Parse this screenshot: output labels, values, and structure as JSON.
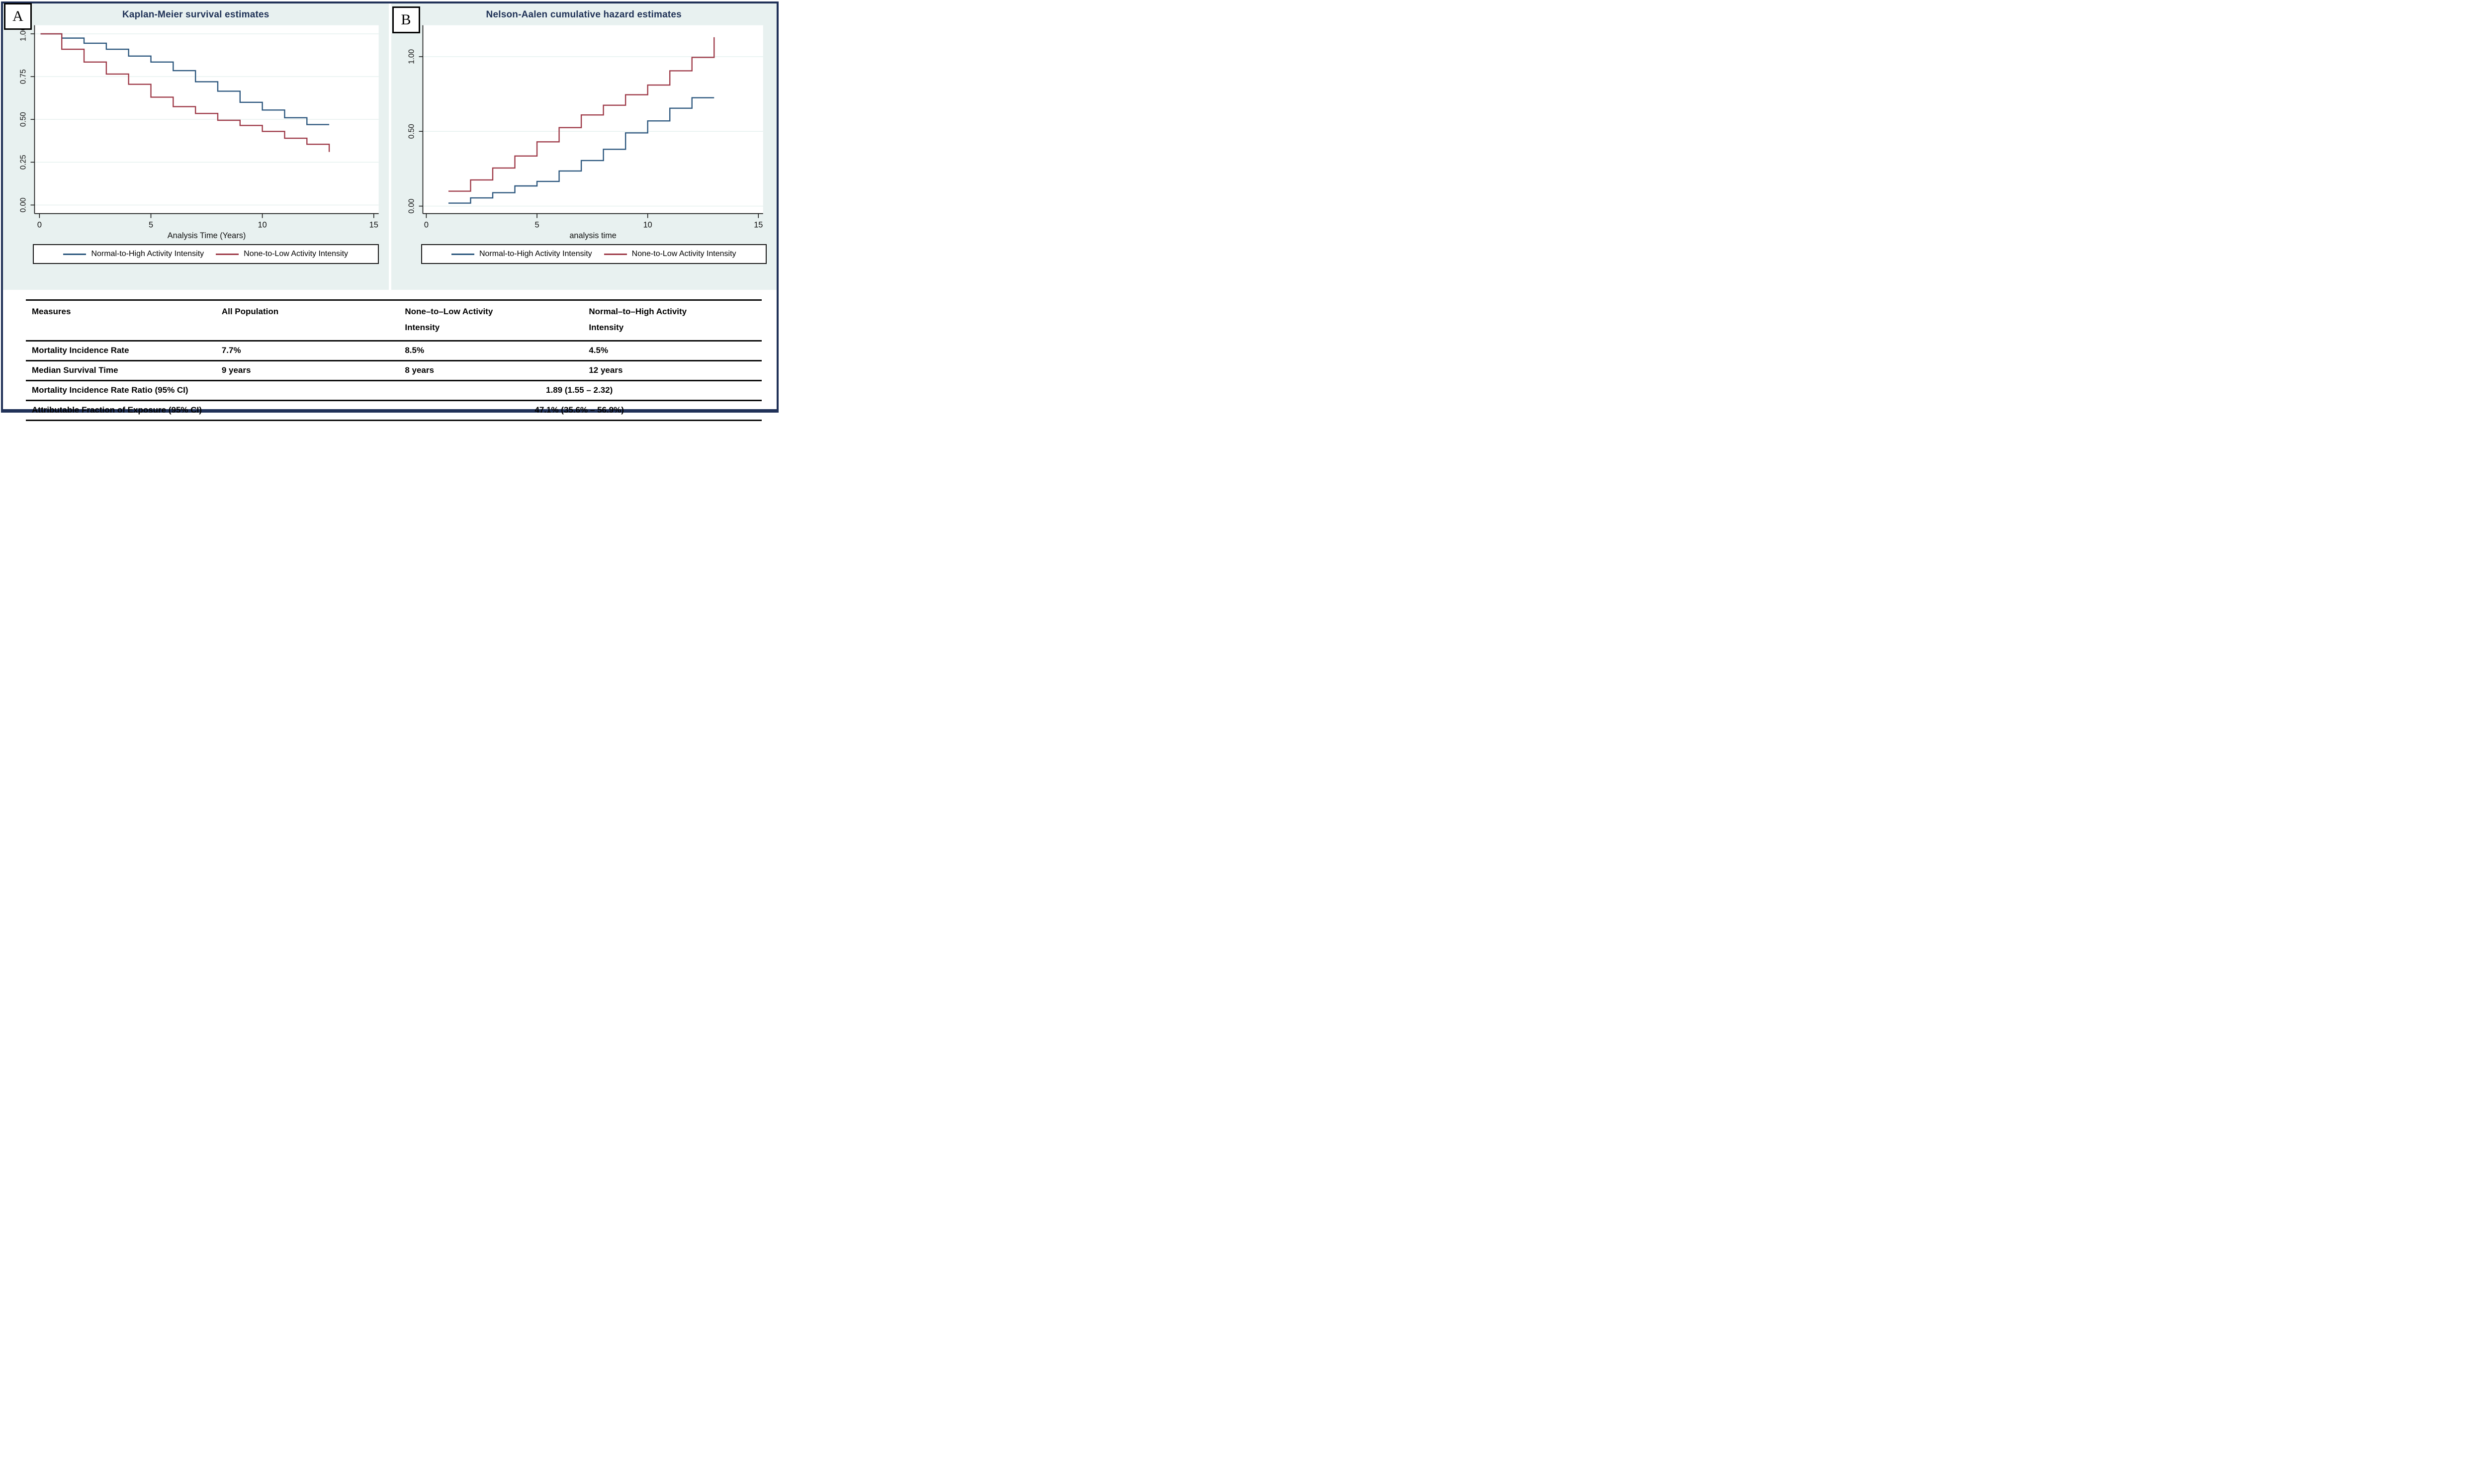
{
  "panel_labels": {
    "a": "A",
    "b": "B"
  },
  "colors": {
    "outer_border_navy": "#203158",
    "panel_background": "#e8f1f0",
    "plot_background": "#ffffff",
    "gridline": "#e4efee",
    "title_navy": "#1e3156",
    "line_blue": "#2b567d",
    "line_red": "#9e3a48"
  },
  "legend": {
    "entries": [
      {
        "label": "Normal-to-High Activity Intensity",
        "color": "#2b567d"
      },
      {
        "label": "None-to-Low Activity Intensity",
        "color": "#9e3a48"
      }
    ]
  },
  "chart_data": [
    {
      "type": "line",
      "subtype": "step",
      "panel": "A",
      "title": "Kaplan-Meier survival estimates",
      "xlabel": "Analysis Time (Years)",
      "ylabel": "",
      "xlim": [
        0,
        15.3
      ],
      "ylim": [
        -0.05,
        1.05
      ],
      "grid": true,
      "legend_position": "bottom",
      "x_ticks": [
        {
          "v": 0,
          "label": "0"
        },
        {
          "v": 5,
          "label": "5"
        },
        {
          "v": 10,
          "label": "10"
        },
        {
          "v": 15,
          "label": "15"
        }
      ],
      "y_ticks": [
        {
          "v": 0,
          "label": "0.00"
        },
        {
          "v": 0.25,
          "label": "0.25"
        },
        {
          "v": 0.5,
          "label": "0.50"
        },
        {
          "v": 0.75,
          "label": "0.75"
        },
        {
          "v": 1,
          "label": "1.00"
        }
      ],
      "series": [
        {
          "name": "Normal-to-High Activity Intensity",
          "color": "#2b567d",
          "steps": [
            [
              0.05,
              1.0
            ],
            [
              1,
              0.975
            ],
            [
              2,
              0.945
            ],
            [
              3,
              0.91
            ],
            [
              4,
              0.87
            ],
            [
              5,
              0.835
            ],
            [
              6,
              0.785
            ],
            [
              7,
              0.72
            ],
            [
              8,
              0.665
            ],
            [
              9,
              0.6
            ],
            [
              10,
              0.555
            ],
            [
              11,
              0.51
            ],
            [
              12,
              0.47
            ]
          ],
          "end_x": 13,
          "final_y": null
        },
        {
          "name": "None-to-Low Activity Intensity",
          "color": "#9e3a48",
          "steps": [
            [
              0.05,
              1.0
            ],
            [
              1,
              0.91
            ],
            [
              2,
              0.835
            ],
            [
              3,
              0.765
            ],
            [
              4,
              0.705
            ],
            [
              5,
              0.63
            ],
            [
              6,
              0.575
            ],
            [
              7,
              0.535
            ],
            [
              8,
              0.495
            ],
            [
              9,
              0.465
            ],
            [
              10,
              0.43
            ],
            [
              11,
              0.39
            ],
            [
              12,
              0.355
            ]
          ],
          "end_x": 13,
          "final_y": 0.31
        }
      ]
    },
    {
      "type": "line",
      "subtype": "step",
      "panel": "B",
      "title": "Nelson-Aalen cumulative hazard estimates",
      "xlabel": "analysis time",
      "ylabel": "",
      "xlim": [
        0,
        15.3
      ],
      "ylim": [
        -0.05,
        1.21
      ],
      "grid": true,
      "legend_position": "bottom",
      "x_ticks": [
        {
          "v": 0,
          "label": "0"
        },
        {
          "v": 5,
          "label": "5"
        },
        {
          "v": 10,
          "label": "10"
        },
        {
          "v": 15,
          "label": "15"
        }
      ],
      "y_ticks": [
        {
          "v": 0,
          "label": "0.00"
        },
        {
          "v": 0.5,
          "label": "0.50"
        },
        {
          "v": 1,
          "label": "1.00"
        }
      ],
      "series": [
        {
          "name": "Normal-to-High Activity Intensity",
          "color": "#2b567d",
          "steps": [
            [
              1,
              0.02
            ],
            [
              2,
              0.055
            ],
            [
              3,
              0.09
            ],
            [
              4,
              0.135
            ],
            [
              5,
              0.165
            ],
            [
              6,
              0.235
            ],
            [
              7,
              0.305
            ],
            [
              8,
              0.38
            ],
            [
              9,
              0.49
            ],
            [
              10,
              0.57
            ],
            [
              11,
              0.655
            ],
            [
              12,
              0.725
            ]
          ],
          "end_x": 13,
          "final_y": null
        },
        {
          "name": "None-to-Low Activity Intensity",
          "color": "#9e3a48",
          "steps": [
            [
              1,
              0.1
            ],
            [
              2,
              0.175
            ],
            [
              3,
              0.255
            ],
            [
              4,
              0.335
            ],
            [
              5,
              0.43
            ],
            [
              6,
              0.525
            ],
            [
              7,
              0.61
            ],
            [
              8,
              0.675
            ],
            [
              9,
              0.745
            ],
            [
              10,
              0.81
            ],
            [
              11,
              0.905
            ],
            [
              12,
              0.995
            ]
          ],
          "end_x": 13,
          "final_y": 1.13
        }
      ]
    }
  ],
  "table": {
    "columns": [
      {
        "line1": "Measures",
        "line2": ""
      },
      {
        "line1": "All Population",
        "line2": ""
      },
      {
        "line1": "None–to–Low Activity",
        "line2": "Intensity"
      },
      {
        "line1": "Normal–to–High Activity",
        "line2": "Intensity"
      }
    ],
    "rows": [
      {
        "label": "Mortality Incidence Rate",
        "all": "7.7%",
        "none_low": "8.5%",
        "normal_high": "4.5%"
      },
      {
        "label": "Median Survival Time",
        "all": "9 years",
        "none_low": "8 years",
        "normal_high": "12 years"
      }
    ],
    "span_rows": [
      {
        "label": "Mortality Incidence Rate Ratio (95% CI)",
        "value": "1.89 (1.55 – 2.32)"
      },
      {
        "label": "Attributable Fraction of Exposure (95% CI)",
        "value": "47.1% (35.6% – 56.9%)"
      }
    ]
  }
}
